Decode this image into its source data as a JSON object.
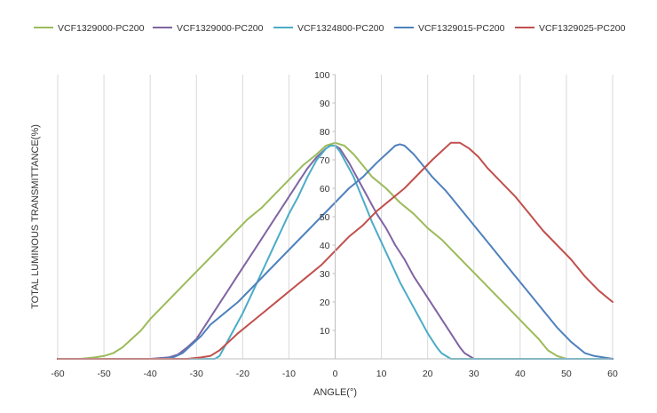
{
  "chart_data": {
    "type": "line",
    "title": "",
    "xlabel": "ANGLE(°)",
    "ylabel": "TOTAL LUMINOUS TRANSMITTANCE(%)",
    "xlim": [
      -60,
      60
    ],
    "ylim": [
      0,
      100
    ],
    "x_ticks": [
      -60,
      -50,
      -40,
      -30,
      -20,
      -10,
      0,
      10,
      20,
      30,
      40,
      50,
      60
    ],
    "y_ticks": [
      10,
      20,
      30,
      40,
      50,
      60,
      70,
      80,
      90,
      100
    ],
    "x_tick_labels": [
      "-60",
      "-50",
      "-40",
      "-30",
      "-20",
      "-10",
      "0",
      "10",
      "20",
      "30",
      "40",
      "50",
      "60"
    ],
    "y_tick_labels": [
      "10",
      "20",
      "30",
      "40",
      "50",
      "60",
      "70",
      "80",
      "90",
      "100"
    ],
    "grid": "vertical",
    "legend_position": "top",
    "series": [
      {
        "name": "VCF1329000-PC200",
        "color": "#9bbb59",
        "points": [
          [
            -60,
            0
          ],
          [
            -55,
            0
          ],
          [
            -52,
            0.5
          ],
          [
            -50,
            1
          ],
          [
            -48,
            2
          ],
          [
            -46,
            4
          ],
          [
            -44,
            7
          ],
          [
            -42,
            10
          ],
          [
            -40,
            14
          ],
          [
            -37,
            19
          ],
          [
            -34,
            24
          ],
          [
            -31,
            29
          ],
          [
            -28,
            34
          ],
          [
            -25,
            39
          ],
          [
            -22,
            44
          ],
          [
            -19,
            49
          ],
          [
            -16,
            53
          ],
          [
            -13,
            58
          ],
          [
            -10,
            63
          ],
          [
            -7,
            68
          ],
          [
            -4,
            72
          ],
          [
            -2,
            75
          ],
          [
            0,
            76
          ],
          [
            2,
            75
          ],
          [
            4,
            72
          ],
          [
            6,
            68
          ],
          [
            8,
            64
          ],
          [
            11,
            60
          ],
          [
            14,
            55
          ],
          [
            17,
            51
          ],
          [
            20,
            46
          ],
          [
            23,
            42
          ],
          [
            26,
            37
          ],
          [
            29,
            32
          ],
          [
            32,
            27
          ],
          [
            35,
            22
          ],
          [
            38,
            17
          ],
          [
            41,
            12
          ],
          [
            44,
            7
          ],
          [
            46,
            3
          ],
          [
            48,
            1
          ],
          [
            50,
            0
          ],
          [
            55,
            0
          ],
          [
            60,
            0
          ]
        ]
      },
      {
        "name": "VCF1329000-PC200",
        "color": "#8064a2",
        "points": [
          [
            -60,
            0
          ],
          [
            -40,
            0
          ],
          [
            -36,
            0.5
          ],
          [
            -34,
            1.5
          ],
          [
            -32,
            4
          ],
          [
            -30,
            7
          ],
          [
            -28,
            12
          ],
          [
            -26,
            17
          ],
          [
            -24,
            22
          ],
          [
            -22,
            27
          ],
          [
            -20,
            32
          ],
          [
            -18,
            37
          ],
          [
            -16,
            42
          ],
          [
            -14,
            47
          ],
          [
            -12,
            52
          ],
          [
            -10,
            57
          ],
          [
            -8,
            62
          ],
          [
            -6,
            67
          ],
          [
            -4,
            71
          ],
          [
            -2,
            74
          ],
          [
            -1,
            75
          ],
          [
            0,
            75
          ],
          [
            1,
            74
          ],
          [
            3,
            69
          ],
          [
            5,
            63
          ],
          [
            7,
            57
          ],
          [
            9,
            51
          ],
          [
            11,
            46
          ],
          [
            13,
            40
          ],
          [
            15,
            35
          ],
          [
            17,
            29
          ],
          [
            19,
            24
          ],
          [
            21,
            19
          ],
          [
            23,
            14
          ],
          [
            25,
            9
          ],
          [
            27,
            4
          ],
          [
            28,
            2
          ],
          [
            30,
            0
          ],
          [
            60,
            0
          ]
        ]
      },
      {
        "name": "VCF1324800-PC200",
        "color": "#4bacc6",
        "points": [
          [
            -60,
            0
          ],
          [
            -26,
            0
          ],
          [
            -25,
            1
          ],
          [
            -24,
            4
          ],
          [
            -22,
            10
          ],
          [
            -20,
            16
          ],
          [
            -18,
            23
          ],
          [
            -16,
            30
          ],
          [
            -14,
            37
          ],
          [
            -12,
            44
          ],
          [
            -10,
            51
          ],
          [
            -8,
            57
          ],
          [
            -6,
            64
          ],
          [
            -4,
            70
          ],
          [
            -2,
            74
          ],
          [
            -1,
            75
          ],
          [
            0,
            75
          ],
          [
            1,
            73
          ],
          [
            2,
            70
          ],
          [
            4,
            64
          ],
          [
            6,
            56
          ],
          [
            8,
            48
          ],
          [
            10,
            41
          ],
          [
            12,
            34
          ],
          [
            14,
            27
          ],
          [
            16,
            21
          ],
          [
            18,
            15
          ],
          [
            20,
            9
          ],
          [
            22,
            4
          ],
          [
            23,
            2
          ],
          [
            25,
            0
          ],
          [
            60,
            0
          ]
        ]
      },
      {
        "name": "VCF1329015-PC200",
        "color": "#4f81bd",
        "points": [
          [
            -60,
            0
          ],
          [
            -38,
            0
          ],
          [
            -35,
            0.5
          ],
          [
            -33,
            2
          ],
          [
            -31,
            5
          ],
          [
            -29,
            8
          ],
          [
            -27,
            12
          ],
          [
            -24,
            16
          ],
          [
            -21,
            20
          ],
          [
            -18,
            25
          ],
          [
            -15,
            30
          ],
          [
            -12,
            35
          ],
          [
            -9,
            40
          ],
          [
            -6,
            45
          ],
          [
            -3,
            50
          ],
          [
            0,
            55
          ],
          [
            3,
            60
          ],
          [
            6,
            64
          ],
          [
            9,
            69
          ],
          [
            11,
            72
          ],
          [
            13,
            75
          ],
          [
            14,
            75.5
          ],
          [
            15,
            75
          ],
          [
            17,
            72
          ],
          [
            19,
            68
          ],
          [
            21,
            64
          ],
          [
            24,
            59
          ],
          [
            27,
            53
          ],
          [
            30,
            47
          ],
          [
            33,
            41
          ],
          [
            36,
            35
          ],
          [
            39,
            29
          ],
          [
            42,
            23
          ],
          [
            45,
            17
          ],
          [
            48,
            11
          ],
          [
            51,
            6
          ],
          [
            54,
            2
          ],
          [
            56,
            1
          ],
          [
            58,
            0.5
          ],
          [
            60,
            0
          ]
        ]
      },
      {
        "name": "VCF1329025-PC200",
        "color": "#c0504d",
        "points": [
          [
            -60,
            0
          ],
          [
            -32,
            0
          ],
          [
            -29,
            0.5
          ],
          [
            -27,
            1
          ],
          [
            -25,
            3
          ],
          [
            -23,
            6
          ],
          [
            -21,
            9
          ],
          [
            -18,
            13
          ],
          [
            -15,
            17
          ],
          [
            -12,
            21
          ],
          [
            -9,
            25
          ],
          [
            -6,
            29
          ],
          [
            -3,
            33
          ],
          [
            0,
            38
          ],
          [
            3,
            43
          ],
          [
            6,
            47
          ],
          [
            9,
            52
          ],
          [
            12,
            56
          ],
          [
            15,
            60
          ],
          [
            18,
            65
          ],
          [
            21,
            70
          ],
          [
            23,
            73
          ],
          [
            25,
            76
          ],
          [
            27,
            76
          ],
          [
            29,
            74
          ],
          [
            31,
            71
          ],
          [
            33,
            67
          ],
          [
            36,
            62
          ],
          [
            39,
            57
          ],
          [
            42,
            51
          ],
          [
            45,
            45
          ],
          [
            48,
            40
          ],
          [
            51,
            35
          ],
          [
            54,
            29
          ],
          [
            57,
            24
          ],
          [
            60,
            20
          ]
        ]
      }
    ]
  }
}
